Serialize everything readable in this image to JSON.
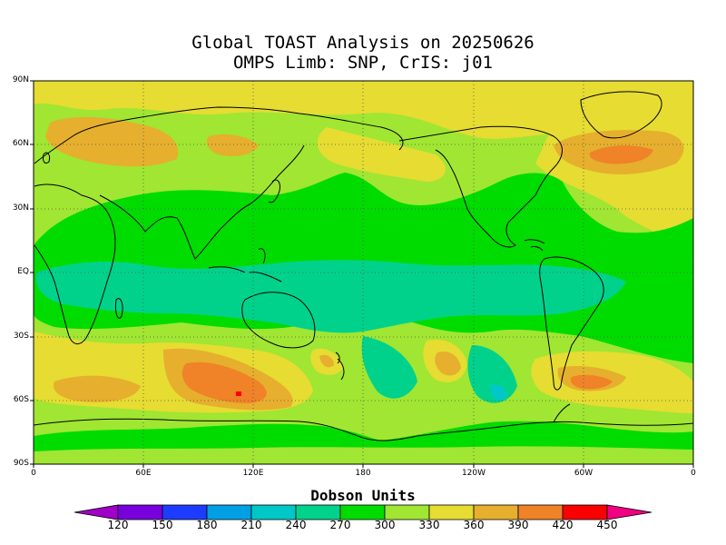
{
  "title": {
    "line1": "Global TOAST Analysis on 20250626",
    "line2": "OMPS Limb: SNP,  CrIS: j01"
  },
  "map": {
    "lat_labels": [
      "90N",
      "60N",
      "30N",
      "EQ",
      "30S",
      "60S",
      "90S"
    ],
    "lon_labels": [
      "0",
      "60E",
      "120E",
      "180",
      "120W",
      "60W",
      "0"
    ],
    "gridlines": "dotted"
  },
  "colorbar": {
    "title": "Dobson Units",
    "labels": [
      "120",
      "150",
      "180",
      "210",
      "240",
      "270",
      "300",
      "330",
      "360",
      "390",
      "420",
      "450"
    ],
    "colors": {
      "below_120": "#a000c8",
      "c120_150": "#7800dc",
      "c150_180": "#1e3cff",
      "c180_210": "#00a0e6",
      "c210_240": "#00c8c8",
      "c240_270": "#00d28c",
      "c270_300": "#00dc00",
      "c300_330": "#a0e632",
      "c330_360": "#e6dc32",
      "c360_390": "#e6af2d",
      "c390_420": "#f08228",
      "c420_450": "#fa0000",
      "above_450": "#f00082"
    }
  }
}
